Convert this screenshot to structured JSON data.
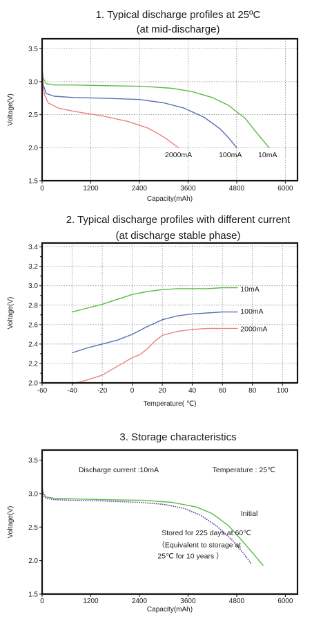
{
  "colors": {
    "green": "#5cb848",
    "blue": "#5a6fb0",
    "red": "#ee7f84",
    "purple": "#5a43a0"
  },
  "chart_data": [
    {
      "type": "line",
      "title_lines": [
        "1. Typical discharge profiles at 25ºC",
        "(at mid-discharge)"
      ],
      "xlabel": "Capacity(mAh)",
      "ylabel": "Voltage(V)",
      "xlim": [
        0,
        6300
      ],
      "ylim": [
        1.5,
        3.65
      ],
      "xticks": [
        0,
        1200,
        2400,
        3600,
        4800,
        6000
      ],
      "xtick_labels": [
        "0",
        "1200",
        "2400",
        "3600",
        "4800",
        "6000"
      ],
      "yticks": [
        1.5,
        2.0,
        2.5,
        3.0,
        3.5
      ],
      "ytick_labels": [
        "1.5",
        "2.0",
        "2.5",
        "3.0",
        "3.5"
      ],
      "grid": true,
      "series": [
        {
          "name": "10mA",
          "color": "green",
          "x": [
            0,
            30,
            100,
            300,
            800,
            1500,
            2500,
            3200,
            3700,
            4200,
            4600,
            5000,
            5300,
            5600
          ],
          "y": [
            3.2,
            3.05,
            2.97,
            2.95,
            2.95,
            2.94,
            2.93,
            2.9,
            2.85,
            2.76,
            2.64,
            2.45,
            2.22,
            2.0
          ]
        },
        {
          "name": "100mA",
          "color": "blue",
          "x": [
            0,
            30,
            100,
            300,
            800,
            1500,
            2400,
            3000,
            3500,
            4000,
            4400,
            4600,
            4800
          ],
          "y": [
            3.15,
            2.95,
            2.82,
            2.78,
            2.76,
            2.75,
            2.73,
            2.68,
            2.6,
            2.46,
            2.28,
            2.15,
            2.0
          ]
        },
        {
          "name": "2000mA",
          "color": "red",
          "x": [
            0,
            20,
            60,
            150,
            400,
            800,
            1500,
            2100,
            2600,
            2900,
            3100,
            3250,
            3370
          ],
          "y": [
            3.25,
            2.95,
            2.8,
            2.68,
            2.6,
            2.55,
            2.48,
            2.4,
            2.3,
            2.2,
            2.12,
            2.05,
            2.0
          ]
        }
      ],
      "annotations": [
        {
          "text": "2000mA",
          "x": 3500,
          "y": 1.92
        },
        {
          "text": "100mA",
          "x": 4780,
          "y": 1.92
        },
        {
          "text": "10mA",
          "x": 5700,
          "y": 1.92
        }
      ]
    },
    {
      "type": "line",
      "title_lines": [
        "2. Typical discharge profiles with different current",
        "(at discharge stable phase)"
      ],
      "xlabel": "Temperature(  ℃)",
      "ylabel": "Voltage(V)",
      "xlim": [
        -60,
        110
      ],
      "ylim": [
        2.0,
        3.44
      ],
      "xticks": [
        -60,
        -40,
        -20,
        0,
        20,
        40,
        60,
        80,
        100
      ],
      "xtick_labels": [
        "-60",
        "-40",
        "-20",
        "0",
        "20",
        "40",
        "60",
        "80",
        "100"
      ],
      "yticks": [
        2.0,
        2.2,
        2.4,
        2.6,
        2.8,
        3.0,
        3.2,
        3.4
      ],
      "ytick_labels": [
        "2.0",
        "2.2",
        "2.4",
        "2.6",
        "2.8",
        "3.0",
        "3.2",
        "3.4"
      ],
      "extra_yticks": [
        2.1,
        2.3,
        2.5,
        2.7,
        2.9,
        3.1,
        3.3
      ],
      "grid": true,
      "series": [
        {
          "name": "10mA",
          "color": "green",
          "x": [
            -40,
            -30,
            -20,
            -10,
            0,
            10,
            20,
            30,
            40,
            50,
            60,
            70
          ],
          "y": [
            2.73,
            2.77,
            2.81,
            2.86,
            2.91,
            2.94,
            2.96,
            2.97,
            2.97,
            2.97,
            2.98,
            2.98
          ]
        },
        {
          "name": "100mA",
          "color": "blue",
          "x": [
            -40,
            -30,
            -20,
            -10,
            0,
            10,
            20,
            30,
            40,
            50,
            60,
            70
          ],
          "y": [
            2.31,
            2.36,
            2.4,
            2.44,
            2.5,
            2.58,
            2.65,
            2.69,
            2.71,
            2.72,
            2.73,
            2.73
          ]
        },
        {
          "name": "2000mA",
          "color": "red",
          "x": [
            -40,
            -30,
            -20,
            -10,
            0,
            5,
            10,
            15,
            20,
            30,
            40,
            50,
            60,
            70
          ],
          "y": [
            1.99,
            2.03,
            2.08,
            2.17,
            2.26,
            2.29,
            2.35,
            2.43,
            2.49,
            2.53,
            2.55,
            2.56,
            2.56,
            2.56
          ]
        }
      ],
      "annotations": [
        {
          "text": "10mA",
          "x": 72,
          "y": 2.97
        },
        {
          "text": "100mA",
          "x": 72,
          "y": 2.74
        },
        {
          "text": "2000mA",
          "x": 72,
          "y": 2.56
        }
      ]
    },
    {
      "type": "line",
      "title_lines": [
        "3. Storage characteristics"
      ],
      "xlabel": "Capacity(mAh)",
      "ylabel": "Voltage(V)",
      "xlim": [
        0,
        6300
      ],
      "ylim": [
        1.5,
        3.65
      ],
      "xticks": [
        0,
        1200,
        2400,
        3600,
        4800,
        6000
      ],
      "xtick_labels": [
        "0",
        "1200",
        "2400",
        "3600",
        "4800",
        "6000"
      ],
      "yticks": [
        1.5,
        2.0,
        2.5,
        3.0,
        3.5
      ],
      "ytick_labels": [
        "1.5",
        "2.0",
        "2.5",
        "3.0",
        "3.5"
      ],
      "grid": false,
      "series": [
        {
          "name": "Initial",
          "color": "green",
          "style": "solid",
          "x": [
            0,
            30,
            100,
            300,
            800,
            1500,
            2500,
            3200,
            3800,
            4200,
            4600,
            5000,
            5450
          ],
          "y": [
            3.1,
            3.0,
            2.95,
            2.93,
            2.92,
            2.91,
            2.9,
            2.87,
            2.8,
            2.7,
            2.52,
            2.25,
            1.93
          ]
        },
        {
          "name": "Stored for 225 days at 60℃",
          "color": "purple",
          "style": "dotted",
          "x": [
            0,
            30,
            100,
            300,
            800,
            1500,
            2400,
            3000,
            3500,
            3900,
            4300,
            4700,
            4950,
            5150
          ],
          "y": [
            3.05,
            2.97,
            2.93,
            2.91,
            2.9,
            2.89,
            2.87,
            2.84,
            2.78,
            2.68,
            2.52,
            2.3,
            2.12,
            1.96
          ]
        }
      ],
      "annotations": [
        {
          "text": "Discharge current :10mA",
          "x": 900,
          "y": 3.32
        },
        {
          "text": "Temperature : 25℃",
          "x": 4200,
          "y": 3.32
        },
        {
          "text": "Initial",
          "x": 4900,
          "y": 2.67
        },
        {
          "text": "Stored for 225 days at 60℃",
          "x": 2950,
          "y": 2.38
        },
        {
          "text": "（Equivalent to storage at",
          "x": 2850,
          "y": 2.2
        },
        {
          "text": "25℃ for 10 years ）",
          "x": 2850,
          "y": 2.03
        }
      ]
    }
  ]
}
